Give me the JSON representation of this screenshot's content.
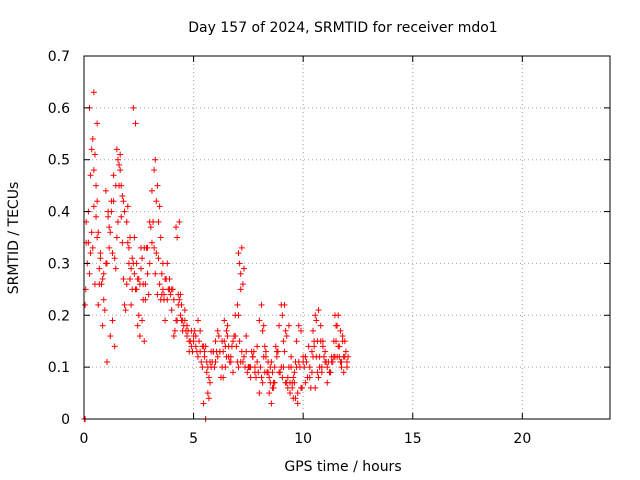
{
  "chart_data": {
    "type": "scatter",
    "title": "Day 157 of 2024, SRMTID for receiver mdo1",
    "xlabel": "GPS time / hours",
    "ylabel": "SRMTID / TECUs",
    "xlim": [
      0,
      24
    ],
    "ylim": [
      0,
      0.7
    ],
    "xticks": [
      "0",
      "5",
      "10",
      "15",
      "20"
    ],
    "yticks": [
      "0",
      "0.1",
      "0.2",
      "0.3",
      "0.4",
      "0.5",
      "0.6",
      "0.7"
    ],
    "grid": true,
    "marker": "plus",
    "color": "#ff0000",
    "series": [
      {
        "name": "mdo1",
        "x": [
          0.05,
          0.1,
          0.15,
          0.2,
          0.25,
          0.3,
          0.35,
          0.4,
          0.45,
          0.5,
          0.55,
          0.6,
          0.65,
          0.7,
          0.75,
          0.8,
          0.85,
          0.9,
          0.95,
          1.0,
          1.05,
          1.1,
          1.15,
          1.2,
          1.25,
          1.3,
          1.35,
          1.4,
          1.45,
          1.5,
          1.55,
          1.6,
          1.65,
          1.7,
          1.75,
          1.8,
          1.85,
          1.9,
          1.95,
          2.0,
          2.05,
          2.1,
          2.15,
          2.2,
          2.25,
          2.3,
          2.35,
          2.4,
          2.45,
          2.5,
          2.55,
          2.6,
          2.65,
          2.7,
          2.75,
          2.8,
          2.85,
          2.9,
          2.95,
          3.0,
          3.05,
          3.1,
          3.15,
          3.2,
          3.25,
          3.3,
          3.35,
          3.4,
          3.45,
          3.5,
          3.55,
          3.6,
          3.65,
          3.7,
          3.75,
          3.8,
          3.85,
          3.9,
          3.95,
          4.0,
          4.05,
          4.1,
          4.15,
          4.2,
          4.25,
          4.3,
          4.35,
          4.4,
          4.45,
          4.5,
          4.55,
          4.6,
          4.65,
          4.7,
          4.75,
          4.8,
          4.85,
          4.9,
          4.95,
          5.0,
          5.05,
          5.1,
          5.15,
          5.2,
          5.25,
          5.3,
          5.35,
          5.4,
          5.45,
          5.5,
          5.55,
          5.6,
          5.65,
          5.7,
          5.75,
          5.8,
          5.85,
          5.9,
          5.95,
          6.0,
          6.05,
          6.1,
          6.15,
          6.2,
          6.25,
          6.3,
          6.35,
          6.4,
          6.45,
          6.5,
          6.55,
          6.6,
          6.65,
          6.7,
          6.75,
          6.8,
          6.85,
          6.9,
          6.95,
          7.0,
          7.05,
          7.1,
          7.15,
          7.2,
          7.25,
          7.3,
          7.35,
          7.4,
          7.45,
          7.5,
          7.55,
          7.6,
          7.65,
          7.7,
          7.75,
          7.8,
          7.85,
          7.9,
          7.95,
          8.0,
          8.05,
          8.1,
          8.15,
          8.2,
          8.25,
          8.3,
          8.35,
          8.4,
          8.45,
          8.5,
          8.55,
          8.6,
          8.65,
          8.7,
          8.75,
          8.8,
          8.85,
          8.9,
          8.95,
          9.0,
          9.05,
          9.1,
          9.15,
          9.2,
          9.25,
          9.3,
          9.35,
          9.4,
          9.45,
          9.5,
          9.55,
          9.6,
          9.65,
          9.7,
          9.75,
          9.8,
          9.85,
          9.9,
          9.95,
          10.0,
          10.05,
          10.1,
          10.15,
          10.2,
          10.25,
          10.3,
          10.35,
          10.4,
          10.45,
          10.5,
          10.55,
          10.6,
          10.65,
          10.7,
          10.75,
          10.8,
          10.85,
          10.9,
          10.95,
          11.0,
          11.05,
          11.1,
          11.15,
          11.2,
          11.25,
          11.3,
          11.35,
          11.4,
          11.45,
          11.5,
          11.55,
          11.6,
          11.65,
          11.7,
          11.75,
          11.8,
          11.85,
          11.9,
          11.95,
          12.0,
          12.05,
          0.02,
          0.1,
          0.2,
          0.3,
          0.35,
          0.4,
          0.45,
          0.5,
          0.55,
          0.6,
          0.65,
          0.75,
          0.9,
          1.0,
          1.1,
          1.15,
          1.25,
          1.35,
          1.45,
          1.5,
          1.55,
          1.6,
          1.65,
          1.7,
          1.75,
          1.85,
          1.95,
          2.0,
          2.05,
          2.1,
          2.2,
          2.3,
          2.4,
          2.5,
          2.6,
          2.7,
          2.8,
          2.9,
          3.0,
          3.1,
          3.2,
          3.3,
          3.4,
          3.5,
          3.6,
          3.7,
          3.8,
          3.9,
          4.0,
          4.1,
          4.2,
          4.3,
          4.4,
          4.5,
          4.6,
          4.7,
          4.8,
          4.9,
          5.0,
          5.1,
          5.2,
          5.3,
          5.4,
          5.5,
          5.6,
          5.7,
          5.8,
          5.9,
          6.0,
          6.1,
          6.2,
          6.3,
          6.4,
          6.5,
          6.6,
          6.7,
          6.8,
          6.9,
          7.0,
          7.05,
          7.1,
          7.15,
          7.2,
          7.3,
          7.4,
          7.5,
          7.6,
          7.7,
          7.8,
          7.9,
          8.0,
          8.1,
          8.2,
          8.3,
          8.4,
          8.5,
          8.6,
          8.7,
          8.8,
          8.9,
          9.0,
          9.1,
          9.2,
          9.3,
          9.4,
          9.5,
          9.6,
          9.7,
          9.8,
          9.9,
          10.0,
          10.1,
          10.2,
          10.3,
          10.4,
          10.5,
          10.6,
          10.7,
          10.8,
          10.9,
          11.0,
          11.1,
          11.2,
          11.3,
          11.4,
          11.5,
          11.6,
          11.7,
          11.8,
          11.9,
          12.0,
          0.05,
          0.08,
          0.25,
          0.45,
          0.6,
          0.7,
          0.85,
          1.05,
          1.2,
          1.3,
          1.4,
          1.8,
          2.15,
          2.25,
          2.35,
          2.45,
          2.55,
          2.65,
          2.75,
          3.25,
          3.35,
          3.45,
          3.55,
          3.65,
          4.25,
          4.35,
          4.45,
          5.45,
          5.55,
          5.65,
          5.75,
          6.35,
          6.45,
          6.55,
          7.05,
          7.15,
          7.25,
          8.15,
          8.25,
          8.35,
          8.45,
          8.55,
          8.65,
          9.05,
          9.15,
          9.25,
          9.35,
          9.45,
          9.55,
          9.65,
          9.75,
          10.45,
          10.55,
          10.65,
          10.75,
          10.85,
          11.45,
          11.55,
          11.65,
          11.75,
          11.85
        ],
        "y": [
          0.22,
          0.38,
          0.3,
          0.34,
          0.28,
          0.32,
          0.36,
          0.33,
          0.41,
          0.26,
          0.39,
          0.35,
          0.22,
          0.29,
          0.31,
          0.26,
          0.27,
          0.23,
          0.21,
          0.3,
          0.3,
          0.39,
          0.33,
          0.36,
          0.4,
          0.32,
          0.42,
          0.31,
          0.29,
          0.35,
          0.38,
          0.45,
          0.48,
          0.39,
          0.34,
          0.27,
          0.22,
          0.21,
          0.26,
          0.41,
          0.33,
          0.35,
          0.29,
          0.25,
          0.3,
          0.28,
          0.25,
          0.25,
          0.27,
          0.2,
          0.26,
          0.33,
          0.31,
          0.23,
          0.33,
          0.26,
          0.33,
          0.28,
          0.24,
          0.3,
          0.37,
          0.34,
          0.38,
          0.33,
          0.28,
          0.32,
          0.24,
          0.31,
          0.26,
          0.23,
          0.24,
          0.25,
          0.23,
          0.19,
          0.27,
          0.23,
          0.25,
          0.25,
          0.24,
          0.21,
          0.25,
          0.16,
          0.17,
          0.19,
          0.19,
          0.22,
          0.23,
          0.24,
          0.19,
          0.17,
          0.18,
          0.19,
          0.17,
          0.16,
          0.17,
          0.13,
          0.15,
          0.14,
          0.13,
          0.15,
          0.17,
          0.16,
          0.13,
          0.12,
          0.15,
          0.13,
          0.11,
          0.1,
          0.14,
          0.13,
          0.14,
          0.09,
          0.1,
          0.08,
          0.11,
          0.13,
          0.11,
          0.13,
          0.1,
          0.11,
          0.13,
          0.12,
          0.16,
          0.13,
          0.08,
          0.1,
          0.13,
          0.15,
          0.1,
          0.12,
          0.16,
          0.12,
          0.11,
          0.11,
          0.14,
          0.09,
          0.16,
          0.16,
          0.14,
          0.11,
          0.1,
          0.15,
          0.11,
          0.13,
          0.11,
          0.12,
          0.1,
          0.13,
          0.09,
          0.1,
          0.1,
          0.1,
          0.13,
          0.12,
          0.13,
          0.1,
          0.08,
          0.11,
          0.09,
          0.05,
          0.1,
          0.08,
          0.07,
          0.12,
          0.09,
          0.13,
          0.09,
          0.09,
          0.08,
          0.1,
          0.11,
          0.06,
          0.06,
          0.07,
          0.14,
          0.13,
          0.13,
          0.09,
          0.09,
          0.1,
          0.08,
          0.1,
          0.13,
          0.07,
          0.07,
          0.06,
          0.1,
          0.07,
          0.1,
          0.07,
          0.04,
          0.07,
          0.11,
          0.1,
          0.05,
          0.11,
          0.1,
          0.06,
          0.06,
          0.11,
          0.1,
          0.12,
          0.11,
          0.08,
          0.14,
          0.08,
          0.06,
          0.09,
          0.12,
          0.14,
          0.06,
          0.12,
          0.09,
          0.08,
          0.1,
          0.15,
          0.1,
          0.15,
          0.12,
          0.11,
          0.11,
          0.07,
          0.11,
          0.09,
          0.09,
          0.11,
          0.11,
          0.12,
          0.12,
          0.15,
          0.12,
          0.14,
          0.12,
          0.11,
          0.1,
          0.16,
          0.12,
          0.15,
          0.13,
          0.11,
          0.12,
          0.0,
          0.34,
          0.4,
          0.47,
          0.52,
          0.54,
          0.48,
          0.51,
          0.45,
          0.42,
          0.36,
          0.32,
          0.28,
          0.44,
          0.4,
          0.37,
          0.42,
          0.47,
          0.45,
          0.52,
          0.5,
          0.49,
          0.51,
          0.45,
          0.43,
          0.4,
          0.38,
          0.34,
          0.3,
          0.27,
          0.31,
          0.35,
          0.3,
          0.27,
          0.29,
          0.26,
          0.23,
          0.33,
          0.38,
          0.44,
          0.48,
          0.42,
          0.38,
          0.35,
          0.3,
          0.27,
          0.3,
          0.27,
          0.25,
          0.23,
          0.37,
          0.24,
          0.2,
          0.19,
          0.21,
          0.18,
          0.15,
          0.17,
          0.16,
          0.14,
          0.19,
          0.17,
          0.14,
          0.12,
          0.11,
          0.04,
          0.1,
          0.13,
          0.15,
          0.17,
          0.13,
          0.15,
          0.19,
          0.17,
          0.14,
          0.12,
          0.15,
          0.2,
          0.22,
          0.2,
          0.3,
          0.25,
          0.33,
          0.29,
          0.16,
          0.1,
          0.08,
          0.12,
          0.09,
          0.14,
          0.19,
          0.22,
          0.18,
          0.12,
          0.11,
          0.07,
          0.09,
          0.1,
          0.12,
          0.18,
          0.22,
          0.15,
          0.17,
          0.08,
          0.05,
          0.06,
          0.09,
          0.15,
          0.18,
          0.17,
          0.12,
          0.07,
          0.08,
          0.1,
          0.13,
          0.15,
          0.19,
          0.21,
          0.18,
          0.14,
          0.13,
          0.1,
          0.09,
          0.12,
          0.15,
          0.18,
          0.2,
          0.17,
          0.15,
          0.12,
          0.1,
          0.0,
          0.25,
          0.6,
          0.63,
          0.57,
          0.26,
          0.18,
          0.11,
          0.16,
          0.19,
          0.14,
          0.42,
          0.22,
          0.6,
          0.57,
          0.18,
          0.16,
          0.19,
          0.15,
          0.5,
          0.45,
          0.41,
          0.28,
          0.24,
          0.35,
          0.38,
          0.22,
          0.03,
          0.0,
          0.05,
          0.07,
          0.08,
          0.14,
          0.18,
          0.32,
          0.28,
          0.26,
          0.17,
          0.14,
          0.09,
          0.05,
          0.03,
          0.07,
          0.2,
          0.22,
          0.16,
          0.18,
          0.12,
          0.08,
          0.04,
          0.03,
          0.17,
          0.2,
          0.15,
          0.12,
          0.09,
          0.2,
          0.18,
          0.14,
          0.11,
          0.09
        ]
      }
    ]
  }
}
